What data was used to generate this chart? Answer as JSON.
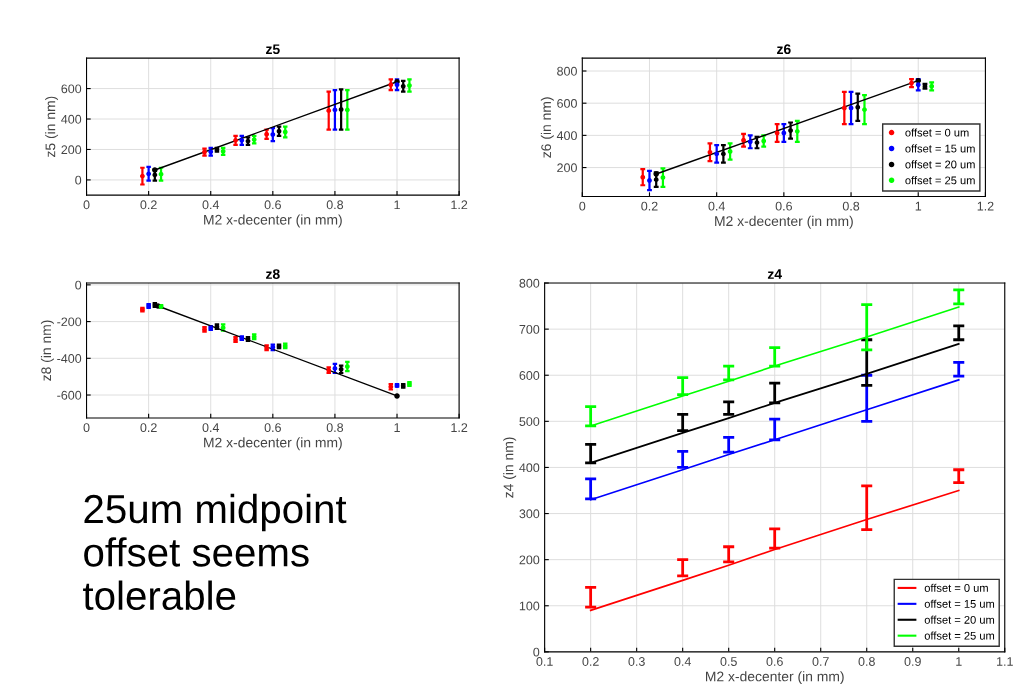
{
  "chart_data": [
    {
      "type": "scatter",
      "title": "z5",
      "xlabel": "M2 x-decenter (in mm)",
      "ylabel": "z5 (in nm)",
      "xlim": [
        0,
        1.2
      ],
      "xticks": [
        0,
        0.2,
        0.4,
        0.6,
        0.8,
        1,
        1.2
      ],
      "ylim": [
        -100,
        800
      ],
      "yticks": [
        0,
        200,
        400,
        600
      ],
      "grid": true,
      "marker": "circle",
      "series": [
        {
          "color": "#ff0000",
          "x": [
            0.18,
            0.38,
            0.48,
            0.58,
            0.78,
            0.98
          ],
          "values": [
            25,
            183,
            260,
            300,
            455,
            625
          ],
          "errors": [
            [
              -30,
              80
            ],
            [
              160,
              205
            ],
            [
              230,
              290
            ],
            [
              270,
              330
            ],
            [
              330,
              580
            ],
            [
              590,
              660
            ]
          ]
        },
        {
          "color": "#0000ff",
          "x": [
            0.2,
            0.4,
            0.5,
            0.6,
            0.8,
            1.0
          ],
          "values": [
            40,
            185,
            260,
            298,
            460,
            625
          ],
          "errors": [
            [
              -5,
              85
            ],
            [
              160,
              210
            ],
            [
              230,
              290
            ],
            [
              255,
              340
            ],
            [
              330,
              590
            ],
            [
              590,
              660
            ]
          ]
        },
        {
          "color": "#000000",
          "x": [
            0.22,
            0.42,
            0.52,
            0.62,
            0.82,
            1.02
          ],
          "values": [
            33,
            198,
            255,
            320,
            463,
            615
          ],
          "errors": [
            [
              -5,
              70
            ],
            [
              185,
              210
            ],
            [
              230,
              280
            ],
            [
              290,
              350
            ],
            [
              330,
              595
            ],
            [
              580,
              650
            ]
          ]
        },
        {
          "color": "#00ff00",
          "x": [
            0.24,
            0.44,
            0.54,
            0.64,
            0.84,
            1.04
          ],
          "values": [
            38,
            188,
            265,
            315,
            460,
            620
          ],
          "errors": [
            [
              -5,
              80
            ],
            [
              165,
              210
            ],
            [
              240,
              290
            ],
            [
              280,
              350
            ],
            [
              330,
              590
            ],
            [
              580,
              660
            ]
          ]
        },
        {
          "type": "line",
          "color": "#000000",
          "x": [
            0.22,
            1.0
          ],
          "values": [
            65,
            645
          ]
        }
      ]
    },
    {
      "type": "scatter",
      "title": "z6",
      "xlabel": "M2 x-decenter (in mm)",
      "ylabel": "z6 (in nm)",
      "xlim": [
        0,
        1.2
      ],
      "xticks": [
        0,
        0.2,
        0.4,
        0.6,
        0.8,
        1,
        1.2
      ],
      "ylim": [
        20,
        880
      ],
      "yticks": [
        200,
        400,
        600,
        800
      ],
      "grid": true,
      "marker": "circle",
      "legend": "bottom right",
      "series": [
        {
          "name": "offset = 0 um",
          "color": "#ff0000",
          "x": [
            0.18,
            0.38,
            0.48,
            0.58,
            0.78,
            0.98
          ],
          "values": [
            140,
            295,
            370,
            415,
            570,
            725
          ],
          "errors": [
            [
              90,
              190
            ],
            [
              240,
              350
            ],
            [
              330,
              410
            ],
            [
              360,
              470
            ],
            [
              470,
              670
            ],
            [
              700,
              750
            ]
          ]
        },
        {
          "name": "offset = 15 um",
          "color": "#0000ff",
          "x": [
            0.2,
            0.4,
            0.5,
            0.6,
            0.8,
            1.0
          ],
          "values": [
            120,
            285,
            360,
            415,
            570,
            715
          ],
          "errors": [
            [
              60,
              180
            ],
            [
              230,
              340
            ],
            [
              320,
              400
            ],
            [
              360,
              470
            ],
            [
              470,
              670
            ],
            [
              680,
              750
            ]
          ]
        },
        {
          "name": "offset = 20 um",
          "color": "#000000",
          "x": [
            0.22,
            0.42,
            0.52,
            0.62,
            0.82,
            1.02
          ],
          "values": [
            125,
            285,
            355,
            430,
            575,
            705
          ],
          "errors": [
            [
              80,
              170
            ],
            [
              230,
              340
            ],
            [
              320,
              390
            ],
            [
              380,
              480
            ],
            [
              490,
              660
            ],
            [
              690,
              720
            ]
          ]
        },
        {
          "name": "offset = 25 um",
          "color": "#00ff00",
          "x": [
            0.24,
            0.44,
            0.54,
            0.64,
            0.84,
            1.04
          ],
          "values": [
            138,
            300,
            365,
            425,
            560,
            705
          ],
          "errors": [
            [
              80,
              195
            ],
            [
              250,
              350
            ],
            [
              330,
              400
            ],
            [
              360,
              490
            ],
            [
              470,
              650
            ],
            [
              680,
              730
            ]
          ]
        },
        {
          "type": "line",
          "color": "#000000",
          "x": [
            0.22,
            1.0
          ],
          "values": [
            160,
            740
          ]
        }
      ]
    },
    {
      "type": "scatter",
      "title": "z8",
      "xlabel": "M2 x-decenter (in mm)",
      "ylabel": "z8 (in nm)",
      "xlim": [
        0,
        1.2
      ],
      "xticks": [
        0,
        0.2,
        0.4,
        0.6,
        0.8,
        1,
        1.2
      ],
      "ylim": [
        -725,
        10
      ],
      "yticks": [
        -600,
        -400,
        -200,
        0
      ],
      "grid": true,
      "marker": "circle",
      "series": [
        {
          "color": "#ff0000",
          "x": [
            0.18,
            0.38,
            0.48,
            0.58,
            0.78,
            0.98
          ],
          "values": [
            -135,
            -243,
            -298,
            -343,
            -465,
            -555
          ],
          "errors": [
            [
              -145,
              -125
            ],
            [
              -255,
              -230
            ],
            [
              -310,
              -285
            ],
            [
              -355,
              -330
            ],
            [
              -480,
              -450
            ],
            [
              -570,
              -540
            ]
          ]
        },
        {
          "color": "#0000ff",
          "x": [
            0.2,
            0.4,
            0.5,
            0.6,
            0.8,
            1.0
          ],
          "values": [
            -115,
            -235,
            -290,
            -340,
            -455,
            -548
          ],
          "errors": [
            [
              -125,
              -105
            ],
            [
              -245,
              -225
            ],
            [
              -300,
              -280
            ],
            [
              -355,
              -325
            ],
            [
              -480,
              -430
            ],
            [
              -555,
              -540
            ]
          ]
        },
        {
          "color": "#000000",
          "x": [
            0.22,
            0.42,
            0.52,
            0.62,
            0.82,
            1.02
          ],
          "values": [
            -110,
            -228,
            -295,
            -335,
            -460,
            -550
          ],
          "errors": [
            [
              -120,
              -100
            ],
            [
              -240,
              -215
            ],
            [
              -305,
              -285
            ],
            [
              -345,
              -325
            ],
            [
              -480,
              -440
            ],
            [
              -560,
              -540
            ]
          ]
        },
        {
          "color": "#00ff00",
          "x": [
            0.24,
            0.44,
            0.54,
            0.64,
            0.84,
            1.04
          ],
          "values": [
            -118,
            -233,
            -283,
            -333,
            -445,
            -540
          ],
          "errors": [
            [
              -125,
              -110
            ],
            [
              -250,
              -215
            ],
            [
              -295,
              -270
            ],
            [
              -345,
              -320
            ],
            [
              -470,
              -420
            ],
            [
              -550,
              -530
            ]
          ]
        },
        {
          "type": "line",
          "color": "#000000",
          "x": [
            0.23,
            1.0
          ],
          "values": [
            -115,
            -605
          ]
        }
      ]
    },
    {
      "type": "line",
      "title": "z4",
      "xlabel": "M2 x-decenter (in mm)",
      "ylabel": "z4 (in nm)",
      "xlim": [
        0.1,
        1.1
      ],
      "xticks": [
        0.1,
        0.2,
        0.3,
        0.4,
        0.5,
        0.6,
        0.7,
        0.8,
        0.9,
        1,
        1.1
      ],
      "ylim": [
        0,
        800
      ],
      "yticks": [
        0,
        100,
        200,
        300,
        400,
        500,
        600,
        700,
        800
      ],
      "grid": true,
      "legend": "bottom right",
      "x": [
        0.2,
        0.4,
        0.5,
        0.6,
        0.8,
        1.0
      ],
      "series": [
        {
          "name": "offset = 0 um",
          "color": "#ff0000",
          "values": [
            90,
            155,
            188,
            222,
            287,
            350
          ],
          "errors": [
            [
              97,
              140
            ],
            [
              165,
              200
            ],
            [
              195,
              228
            ],
            [
              225,
              267
            ],
            [
              265,
              360
            ],
            [
              367,
              395
            ]
          ]
        },
        {
          "name": "offset = 15 um",
          "color": "#0000ff",
          "values": [
            330,
            395,
            428,
            460,
            525,
            590
          ],
          "errors": [
            [
              332,
              375
            ],
            [
              400,
              435
            ],
            [
              433,
              465
            ],
            [
              460,
              505
            ],
            [
              500,
              600
            ],
            [
              598,
              628
            ]
          ]
        },
        {
          "name": "offset = 20 um",
          "color": "#000000",
          "values": [
            410,
            475,
            507,
            540,
            603,
            668
          ],
          "errors": [
            [
              410,
              450
            ],
            [
              480,
              515
            ],
            [
              515,
              542
            ],
            [
              540,
              583
            ],
            [
              578,
              677
            ],
            [
              677,
              707
            ]
          ]
        },
        {
          "name": "offset = 25 um",
          "color": "#00ff00",
          "values": [
            490,
            555,
            587,
            620,
            683,
            748
          ],
          "errors": [
            [
              490,
              532
            ],
            [
              558,
              595
            ],
            [
              590,
              620
            ],
            [
              620,
              660
            ],
            [
              655,
              753
            ],
            [
              755,
              785
            ]
          ]
        }
      ]
    },
    {
      "type": "other",
      "annotations": [
        "25um midpoint\noffset seems\ntolerable"
      ]
    }
  ]
}
